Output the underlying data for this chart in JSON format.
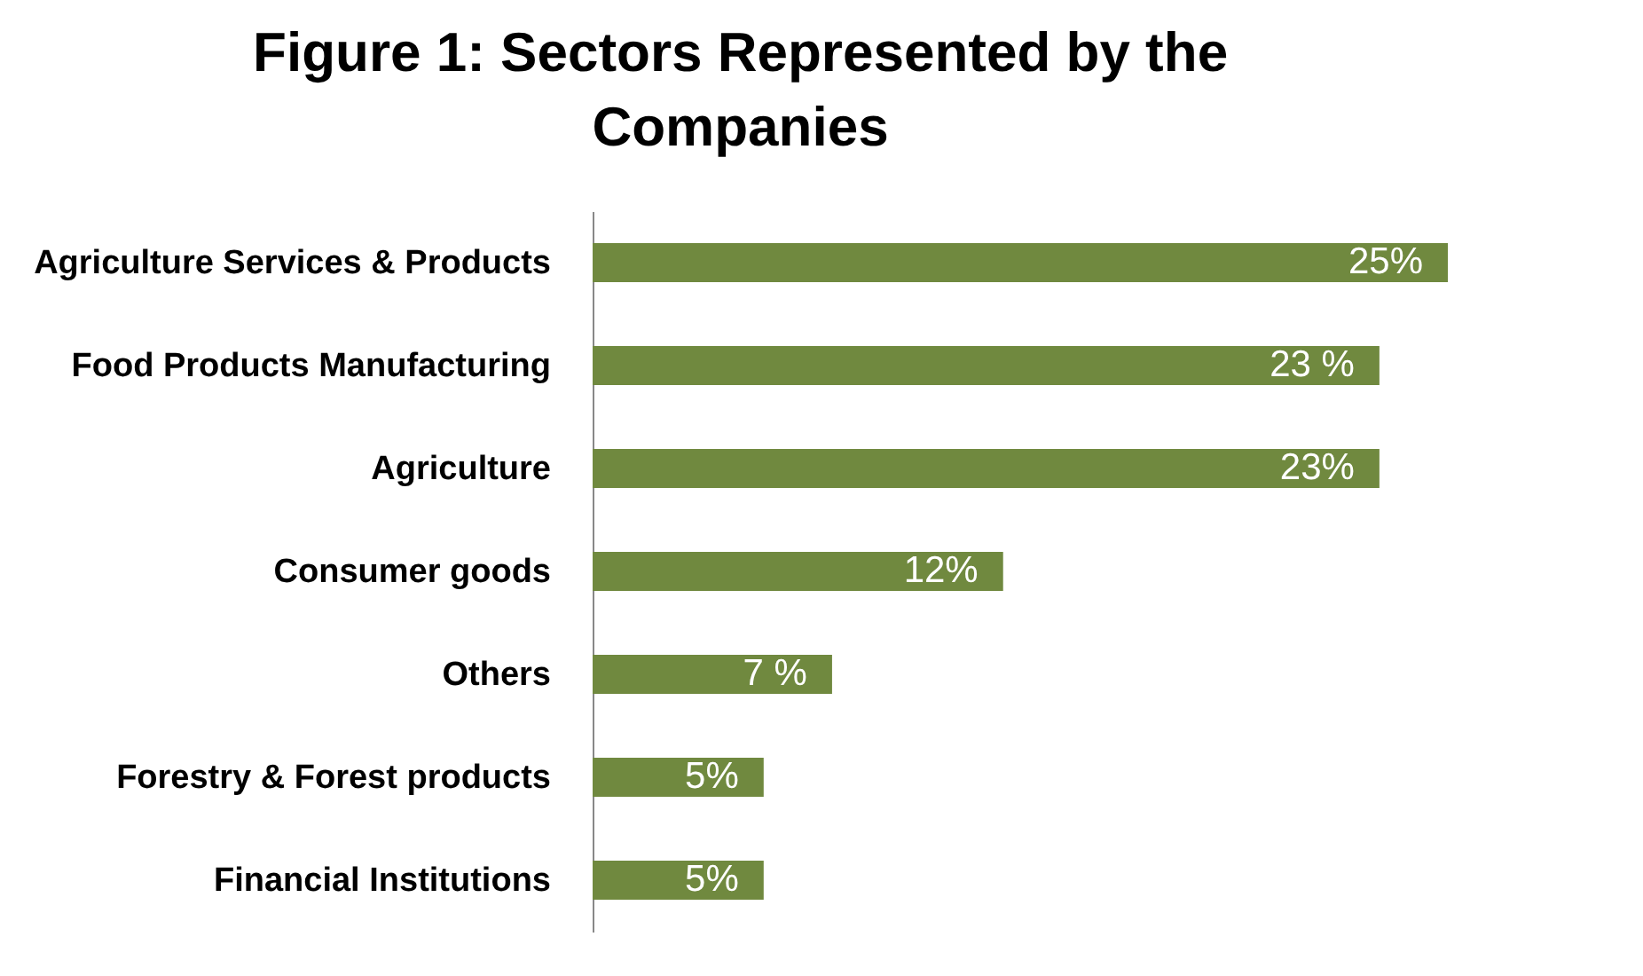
{
  "chart_data": {
    "type": "bar",
    "orientation": "horizontal",
    "title": "Figure 1: Sectors Represented by the Companies",
    "categories": [
      "Agriculture Services & Products",
      "Food Products Manufacturing",
      "Agriculture",
      "Consumer goods",
      "Others",
      "Forestry & Forest products",
      "Financial Institutions"
    ],
    "values": [
      25,
      23,
      23,
      12,
      7,
      5,
      5
    ],
    "value_labels": [
      "25%",
      "23 %",
      "23%",
      "12%",
      "7 %",
      "5%",
      "5%"
    ],
    "color": "#70893f"
  }
}
